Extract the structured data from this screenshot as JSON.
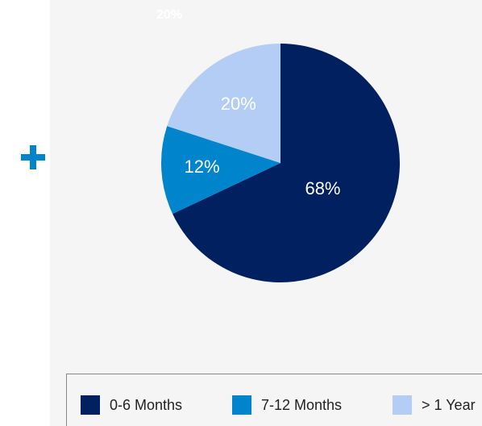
{
  "chart_data": {
    "type": "pie",
    "categories": [
      "0-6 Months",
      "7-12 Months",
      "> 1 Year"
    ],
    "values": [
      68,
      12,
      20
    ],
    "value_labels": [
      "68%",
      "12%",
      "20%"
    ],
    "colors": [
      "#002060",
      "#0085cc",
      "#b4cdf5"
    ],
    "annotations": [
      "20%"
    ],
    "legend": "bottom"
  }
}
